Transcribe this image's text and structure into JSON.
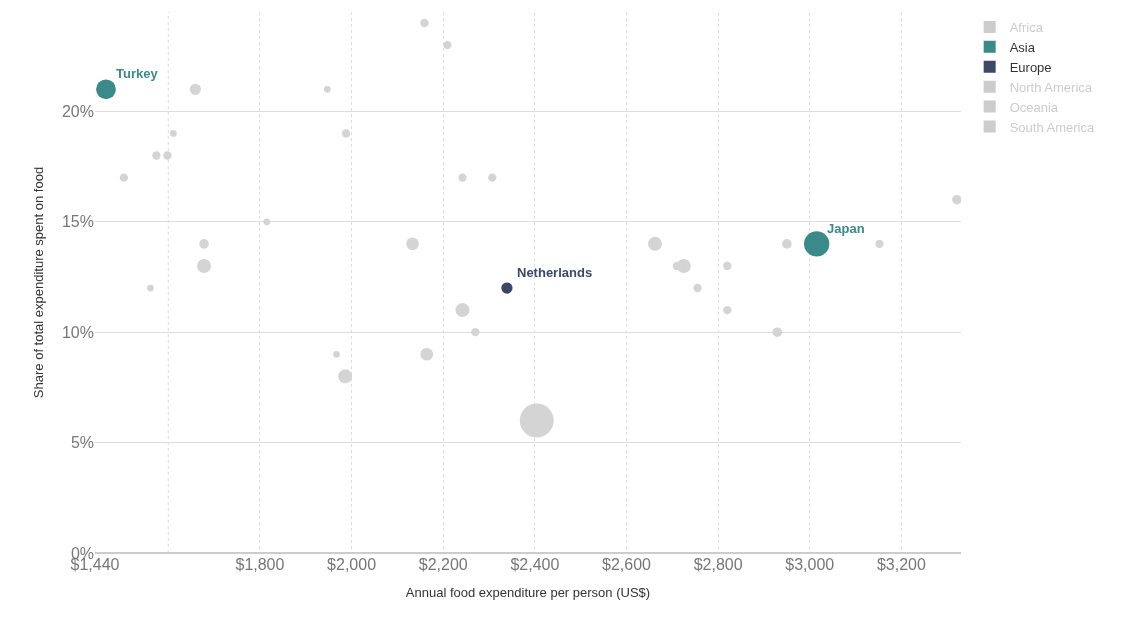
{
  "chart_data": {
    "type": "bubble",
    "xlabel": "Annual food expenditure per person (US$)",
    "ylabel": "Share of total expenditure spent on food",
    "xlim": [
      1440,
      3330
    ],
    "ylim": [
      0,
      24.5
    ],
    "xticks": [
      {
        "value": 1440,
        "label": "$1,440"
      },
      {
        "value": 1600,
        "label": null
      },
      {
        "value": 1800,
        "label": "$1,800"
      },
      {
        "value": 2000,
        "label": "$2,000"
      },
      {
        "value": 2200,
        "label": "$2,200"
      },
      {
        "value": 2400,
        "label": "$2,400"
      },
      {
        "value": 2600,
        "label": "$2,600"
      },
      {
        "value": 2800,
        "label": "$2,800"
      },
      {
        "value": 3000,
        "label": "$3,000"
      },
      {
        "value": 3200,
        "label": "$3,200"
      }
    ],
    "yticks": [
      {
        "value": 0,
        "label": "0%"
      },
      {
        "value": 5,
        "label": "5%"
      },
      {
        "value": 10,
        "label": "10%"
      },
      {
        "value": 15,
        "label": "15%"
      },
      {
        "value": 20,
        "label": "20%"
      }
    ],
    "grid": true,
    "legend": "top right",
    "series": [
      {
        "color": "#d4d4d4",
        "x": [
          1503,
          1561,
          1574,
          1598,
          1611,
          1659,
          1678,
          1678,
          1815,
          1947,
          1967,
          1986,
          1988,
          2159,
          2209,
          2133,
          2164,
          2242,
          2242,
          2270,
          2307,
          2404,
          2662,
          2710,
          2725,
          2755,
          2820,
          2820,
          2929,
          2950,
          3152,
          3321
        ],
        "values": [
          17,
          12,
          18,
          18,
          19,
          21,
          14,
          13,
          15,
          21,
          9,
          8,
          19,
          24,
          23,
          14,
          9,
          11,
          17,
          10,
          17,
          6,
          14,
          13,
          13,
          12,
          13,
          11,
          10,
          14,
          14,
          16
        ],
        "sizes": [
          0.06,
          0.04,
          0.06,
          0.06,
          0.04,
          0.11,
          0.08,
          0.17,
          0.04,
          0.04,
          0.04,
          0.17,
          0.06,
          0.06,
          0.06,
          0.14,
          0.14,
          0.17,
          0.06,
          0.06,
          0.06,
          1,
          0.17,
          0.06,
          0.17,
          0.06,
          0.06,
          0.06,
          0.08,
          0.08,
          0.06,
          0.08
        ]
      },
      {
        "name": "Africa",
        "color": "#cccccc"
      },
      {
        "name": "Asia",
        "color": "#3a8a8a",
        "x": [
          1464,
          3015
        ],
        "values": [
          21,
          14
        ],
        "sizes": [
          0.34,
          0.56
        ]
      },
      {
        "name": "Europe",
        "color": "#3d4766",
        "x": [
          2339
        ],
        "values": [
          12
        ],
        "sizes": [
          0.11
        ]
      },
      {
        "name": "North America",
        "color": "#cccccc"
      },
      {
        "name": "Oceania",
        "color": "#cccccc"
      },
      {
        "name": "South America",
        "color": "#cccccc"
      }
    ],
    "annotations": [
      {
        "text": "Turkey",
        "x": 1464,
        "y": 21
      },
      {
        "text": "Japan",
        "x": 3015,
        "y": 14
      },
      {
        "text": "Netherlands",
        "x": 2339,
        "y": 12
      }
    ]
  }
}
